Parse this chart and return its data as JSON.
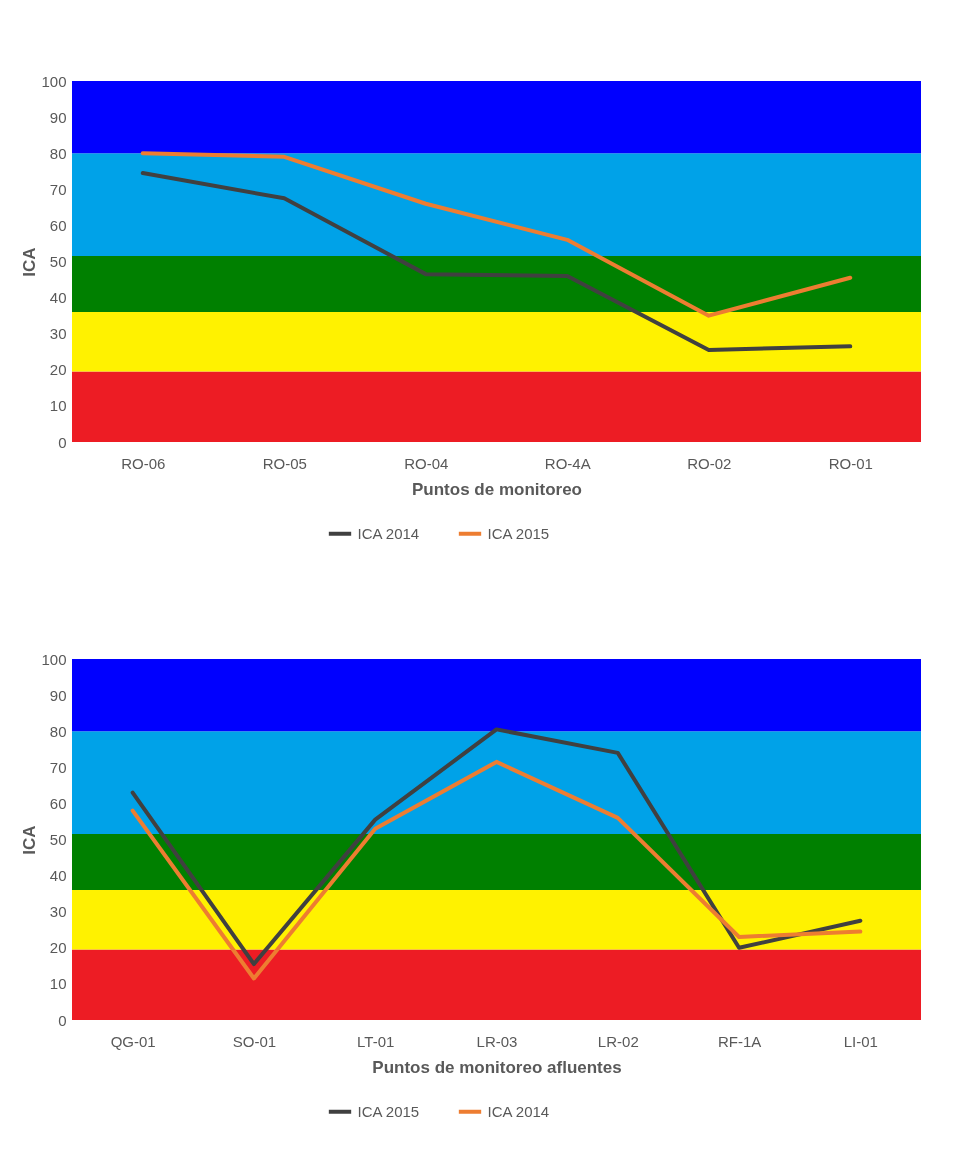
{
  "chart_data": [
    {
      "type": "line",
      "xlabel": "Puntos de monitoreo",
      "ylabel": "ICA",
      "categories": [
        "RO-06",
        "RO-05",
        "RO-04",
        "RO-4A",
        "RO-02",
        "RO-01"
      ],
      "ylim": [
        0,
        100
      ],
      "yticks": [
        0,
        10,
        20,
        30,
        40,
        50,
        60,
        70,
        80,
        90,
        100
      ],
      "grid": false,
      "legend": "bottom",
      "marker": "none",
      "series": [
        {
          "name": "ICA 2014",
          "color": "#404040",
          "values": [
            74.5,
            67.5,
            46.5,
            46,
            25.5,
            26.5
          ]
        },
        {
          "name": "ICA 2015",
          "color": "#ed7d31",
          "values": [
            80,
            79,
            66,
            56,
            35,
            45.5
          ]
        }
      ],
      "bands": [
        {
          "axis": "y",
          "from": 0,
          "to": 19.5,
          "color": "#ed1c24"
        },
        {
          "axis": "y",
          "from": 19.5,
          "to": 36,
          "color": "#fff200"
        },
        {
          "axis": "y",
          "from": 36,
          "to": 51.5,
          "color": "#008000"
        },
        {
          "axis": "y",
          "from": 51.5,
          "to": 80,
          "color": "#00a2e8"
        },
        {
          "axis": "y",
          "from": 80,
          "to": 100,
          "color": "#0000ff"
        }
      ]
    },
    {
      "type": "line",
      "xlabel": "Puntos de monitoreo afluentes",
      "ylabel": "ICA",
      "categories": [
        "QG-01",
        "SO-01",
        "LT-01",
        "LR-03",
        "LR-02",
        "RF-1A",
        "LI-01"
      ],
      "ylim": [
        0,
        100
      ],
      "yticks": [
        0,
        10,
        20,
        30,
        40,
        50,
        60,
        70,
        80,
        90,
        100
      ],
      "grid": false,
      "legend": "bottom",
      "marker": "none",
      "series": [
        {
          "name": "ICA 2015",
          "color": "#404040",
          "values": [
            63,
            15.5,
            55.5,
            80.5,
            74,
            20,
            27.5
          ]
        },
        {
          "name": "ICA 2014",
          "color": "#ed7d31",
          "values": [
            58,
            11.5,
            53,
            71.5,
            56,
            23,
            24.5
          ]
        }
      ],
      "bands": [
        {
          "axis": "y",
          "from": 0,
          "to": 19.5,
          "color": "#ed1c24"
        },
        {
          "axis": "y",
          "from": 19.5,
          "to": 36,
          "color": "#fff200"
        },
        {
          "axis": "y",
          "from": 36,
          "to": 51.5,
          "color": "#008000"
        },
        {
          "axis": "y",
          "from": 51.5,
          "to": 80,
          "color": "#00a2e8"
        },
        {
          "axis": "y",
          "from": 80,
          "to": 100,
          "color": "#0000ff"
        }
      ]
    }
  ]
}
